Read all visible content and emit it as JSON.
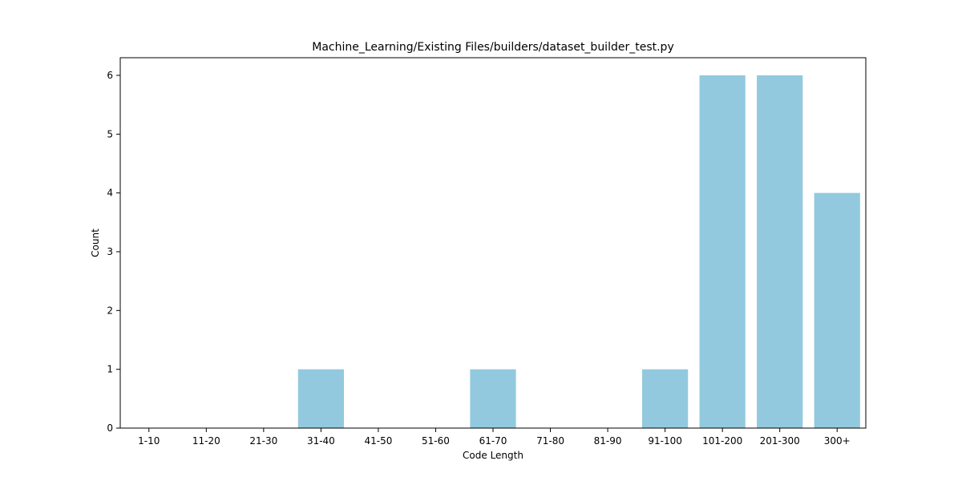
{
  "chart_data": {
    "type": "bar",
    "title": "Machine_Learning/Existing Files/builders/dataset_builder_test.py",
    "xlabel": "Code Length",
    "ylabel": "Count",
    "categories": [
      "1-10",
      "11-20",
      "21-30",
      "31-40",
      "41-50",
      "51-60",
      "61-70",
      "71-80",
      "81-90",
      "91-100",
      "101-200",
      "201-300",
      "300+"
    ],
    "values": [
      0,
      0,
      0,
      1,
      0,
      0,
      1,
      0,
      0,
      1,
      6,
      6,
      4
    ],
    "ylim": [
      0,
      6.3
    ],
    "yticks": [
      0,
      1,
      2,
      3,
      4,
      5,
      6
    ],
    "bar_color": "#92c9de",
    "grid": false,
    "legend": false
  }
}
